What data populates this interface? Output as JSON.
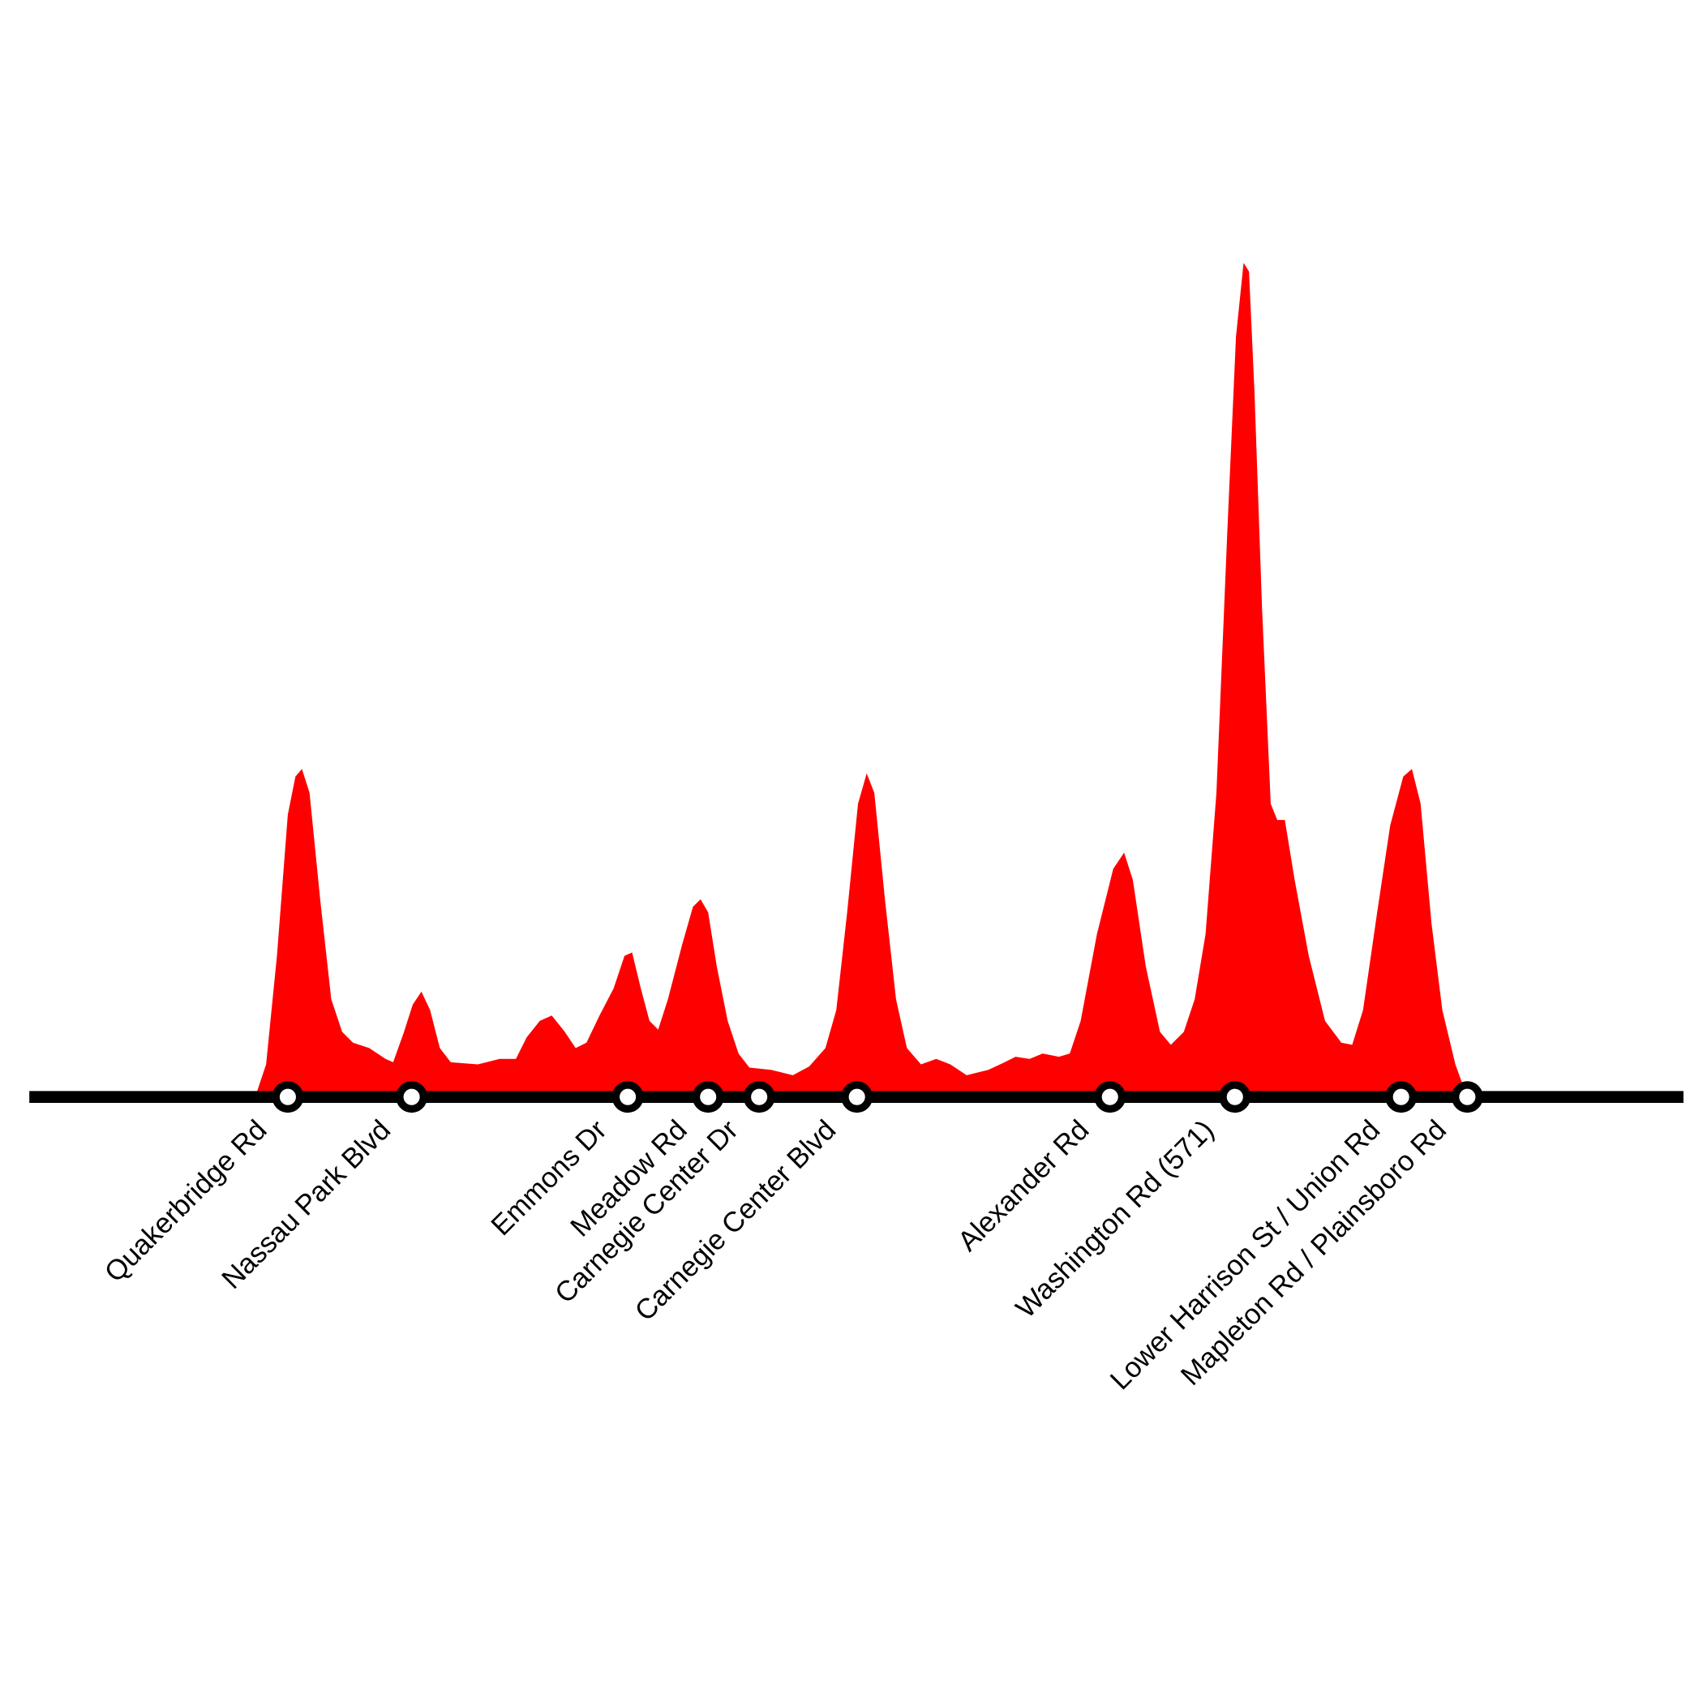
{
  "chart_data": {
    "type": "area",
    "color": "#ff0000",
    "xlim": [
      0,
      1568
    ],
    "ylim": [
      0,
      1010
    ],
    "x": [
      235,
      245,
      255,
      265,
      272,
      278,
      285,
      295,
      305,
      315,
      325,
      340,
      355,
      362,
      372,
      380,
      388,
      396,
      405,
      415,
      440,
      460,
      475,
      485,
      497,
      508,
      520,
      530,
      540,
      552,
      565,
      575,
      582,
      590,
      598,
      606,
      615,
      628,
      638,
      645,
      652,
      660,
      670,
      680,
      690,
      710,
      730,
      745,
      760,
      770,
      780,
      790,
      798,
      805,
      815,
      825,
      835,
      848,
      862,
      875,
      890,
      910,
      925,
      935,
      948,
      960,
      975,
      985,
      995,
      1010,
      1025,
      1035,
      1043,
      1055,
      1068,
      1078,
      1090,
      1100,
      1110,
      1120,
      1130,
      1138,
      1145,
      1150,
      1155,
      1162,
      1170,
      1176,
      1183,
      1192,
      1205,
      1220,
      1235,
      1245,
      1255,
      1268,
      1280,
      1292,
      1300,
      1308,
      1318,
      1328,
      1340,
      1348,
      1352
    ],
    "values": [
      0,
      30,
      130,
      260,
      295,
      302,
      280,
      180,
      90,
      60,
      50,
      45,
      35,
      32,
      60,
      85,
      97,
      80,
      45,
      32,
      30,
      35,
      35,
      55,
      70,
      75,
      60,
      45,
      50,
      75,
      100,
      130,
      133,
      100,
      70,
      62,
      90,
      140,
      175,
      182,
      170,
      120,
      70,
      40,
      27,
      25,
      20,
      28,
      45,
      80,
      170,
      270,
      298,
      280,
      180,
      90,
      45,
      30,
      35,
      30,
      20,
      25,
      32,
      37,
      35,
      40,
      37,
      40,
      70,
      150,
      210,
      225,
      200,
      120,
      60,
      48,
      60,
      90,
      150,
      280,
      520,
      700,
      768,
      760,
      650,
      450,
      270,
      255,
      255,
      200,
      130,
      70,
      50,
      48,
      80,
      170,
      250,
      295,
      302,
      270,
      160,
      80,
      30,
      8,
      0
    ],
    "stations": {
      "names": [
        "Quakerbridge Rd",
        "Nassau Park Blvd",
        "Emmons Dr",
        "Meadow Rd",
        "Carnegie Center Dr",
        "Carnegie Center Blvd",
        "Alexander Rd",
        "Washington Rd (571)",
        "Lower Harrison St / Union Rd",
        "Mapleton Rd / Plainsboro Rd"
      ],
      "x": [
        265,
        379,
        578,
        652,
        699,
        789,
        1022,
        1137,
        1290,
        1351
      ]
    }
  }
}
